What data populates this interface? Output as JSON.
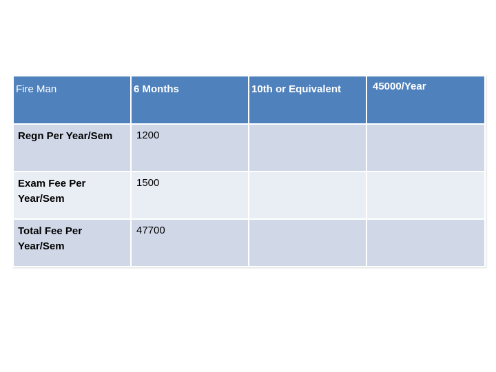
{
  "table": {
    "header": [
      "Fire Man",
      "6 Months",
      "10th or Equivalent",
      "45000/Year"
    ],
    "rows": [
      {
        "label": "Regn Per Year/Sem",
        "value": "1200",
        "col3": "",
        "col4": ""
      },
      {
        "label": "Exam Fee Per Year/Sem",
        "value": "1500",
        "col3": "",
        "col4": ""
      },
      {
        "label": "Total Fee Per Year/Sem",
        "value": "47700",
        "col3": "",
        "col4": ""
      }
    ]
  },
  "colors": {
    "header_bg": "#4f81bd",
    "row_dark": "#d0d8e8",
    "row_light": "#e9edf4",
    "header_text": "#ffffff"
  }
}
